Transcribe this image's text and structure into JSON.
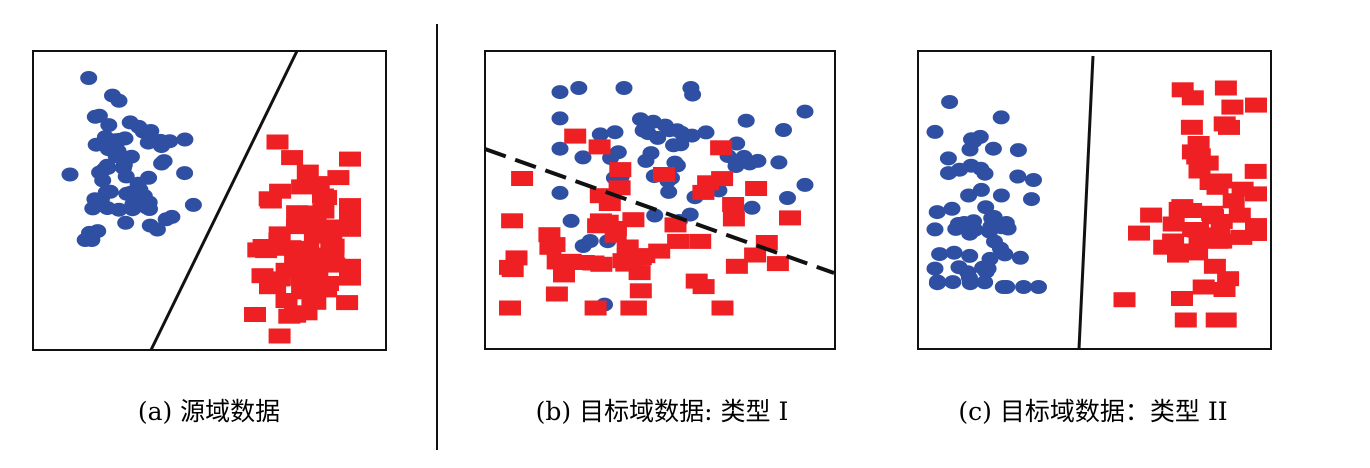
{
  "colors": {
    "class_a": "#2f4fa3",
    "class_b": "#ee2024",
    "frame": "#111111",
    "background": "#ffffff"
  },
  "panels": [
    {
      "caption": "(a) 源域数据",
      "boundary": "solid",
      "blue_count": 65,
      "red_count": 70
    },
    {
      "caption": "(b) 目标域数据: 类型 I",
      "boundary": "dashed",
      "blue_count": 60,
      "red_count": 62
    },
    {
      "caption": "(c) 目标域数据：类型 II",
      "boundary": "solid",
      "blue_count": 62,
      "red_count": 55
    }
  ]
}
